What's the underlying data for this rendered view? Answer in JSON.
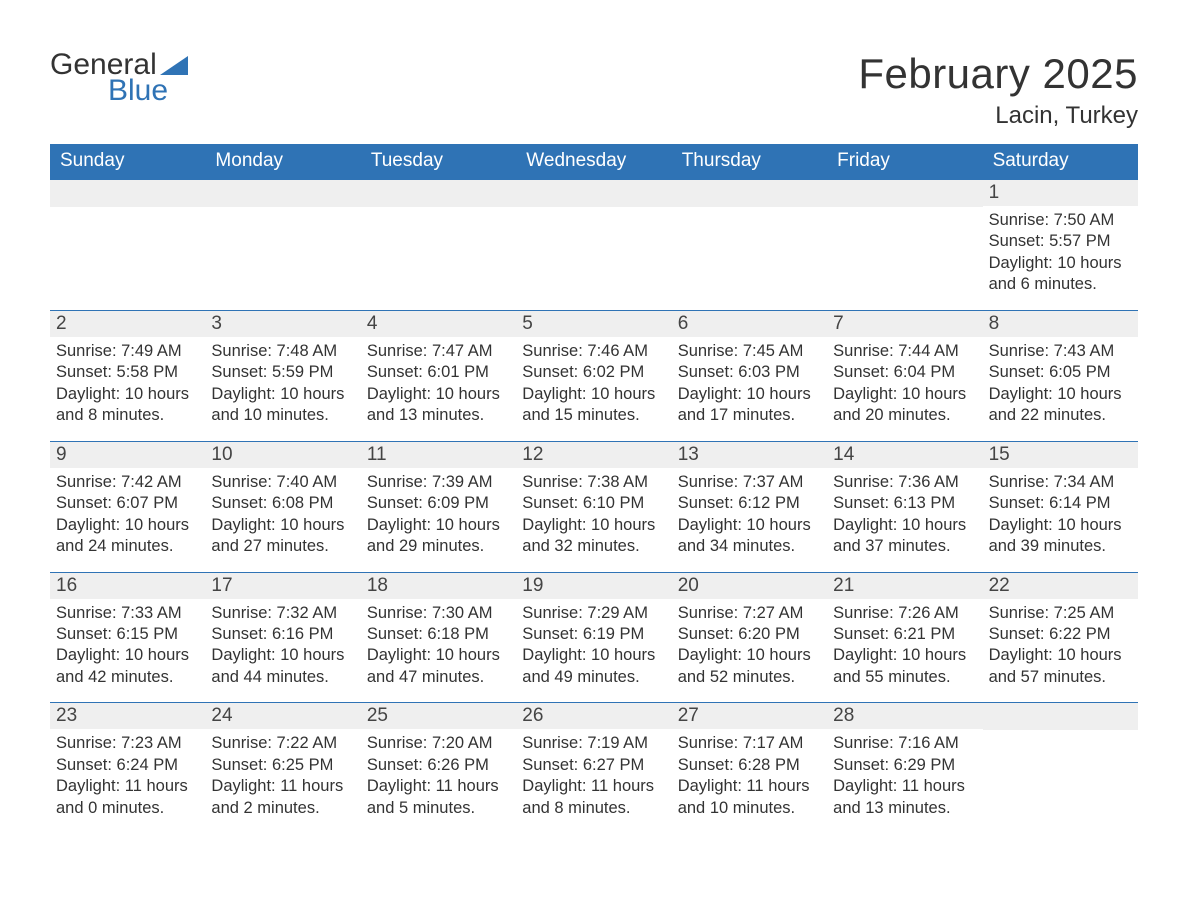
{
  "brand": {
    "name_part1": "General",
    "name_part2": "Blue"
  },
  "colors": {
    "accent": "#2f73b5",
    "header_bg": "#2f73b5",
    "header_text": "#ffffff",
    "daynum_bg": "#efefef",
    "body_text": "#333333",
    "page_bg": "#ffffff",
    "week_border": "#2f73b5"
  },
  "calendar": {
    "title": "February 2025",
    "location": "Lacin, Turkey",
    "columns": [
      "Sunday",
      "Monday",
      "Tuesday",
      "Wednesday",
      "Thursday",
      "Friday",
      "Saturday"
    ],
    "weeks": [
      [
        null,
        null,
        null,
        null,
        null,
        null,
        {
          "day": "1",
          "sunrise": "Sunrise: 7:50 AM",
          "sunset": "Sunset: 5:57 PM",
          "daylight": "Daylight: 10 hours and 6 minutes."
        }
      ],
      [
        {
          "day": "2",
          "sunrise": "Sunrise: 7:49 AM",
          "sunset": "Sunset: 5:58 PM",
          "daylight": "Daylight: 10 hours and 8 minutes."
        },
        {
          "day": "3",
          "sunrise": "Sunrise: 7:48 AM",
          "sunset": "Sunset: 5:59 PM",
          "daylight": "Daylight: 10 hours and 10 minutes."
        },
        {
          "day": "4",
          "sunrise": "Sunrise: 7:47 AM",
          "sunset": "Sunset: 6:01 PM",
          "daylight": "Daylight: 10 hours and 13 minutes."
        },
        {
          "day": "5",
          "sunrise": "Sunrise: 7:46 AM",
          "sunset": "Sunset: 6:02 PM",
          "daylight": "Daylight: 10 hours and 15 minutes."
        },
        {
          "day": "6",
          "sunrise": "Sunrise: 7:45 AM",
          "sunset": "Sunset: 6:03 PM",
          "daylight": "Daylight: 10 hours and 17 minutes."
        },
        {
          "day": "7",
          "sunrise": "Sunrise: 7:44 AM",
          "sunset": "Sunset: 6:04 PM",
          "daylight": "Daylight: 10 hours and 20 minutes."
        },
        {
          "day": "8",
          "sunrise": "Sunrise: 7:43 AM",
          "sunset": "Sunset: 6:05 PM",
          "daylight": "Daylight: 10 hours and 22 minutes."
        }
      ],
      [
        {
          "day": "9",
          "sunrise": "Sunrise: 7:42 AM",
          "sunset": "Sunset: 6:07 PM",
          "daylight": "Daylight: 10 hours and 24 minutes."
        },
        {
          "day": "10",
          "sunrise": "Sunrise: 7:40 AM",
          "sunset": "Sunset: 6:08 PM",
          "daylight": "Daylight: 10 hours and 27 minutes."
        },
        {
          "day": "11",
          "sunrise": "Sunrise: 7:39 AM",
          "sunset": "Sunset: 6:09 PM",
          "daylight": "Daylight: 10 hours and 29 minutes."
        },
        {
          "day": "12",
          "sunrise": "Sunrise: 7:38 AM",
          "sunset": "Sunset: 6:10 PM",
          "daylight": "Daylight: 10 hours and 32 minutes."
        },
        {
          "day": "13",
          "sunrise": "Sunrise: 7:37 AM",
          "sunset": "Sunset: 6:12 PM",
          "daylight": "Daylight: 10 hours and 34 minutes."
        },
        {
          "day": "14",
          "sunrise": "Sunrise: 7:36 AM",
          "sunset": "Sunset: 6:13 PM",
          "daylight": "Daylight: 10 hours and 37 minutes."
        },
        {
          "day": "15",
          "sunrise": "Sunrise: 7:34 AM",
          "sunset": "Sunset: 6:14 PM",
          "daylight": "Daylight: 10 hours and 39 minutes."
        }
      ],
      [
        {
          "day": "16",
          "sunrise": "Sunrise: 7:33 AM",
          "sunset": "Sunset: 6:15 PM",
          "daylight": "Daylight: 10 hours and 42 minutes."
        },
        {
          "day": "17",
          "sunrise": "Sunrise: 7:32 AM",
          "sunset": "Sunset: 6:16 PM",
          "daylight": "Daylight: 10 hours and 44 minutes."
        },
        {
          "day": "18",
          "sunrise": "Sunrise: 7:30 AM",
          "sunset": "Sunset: 6:18 PM",
          "daylight": "Daylight: 10 hours and 47 minutes."
        },
        {
          "day": "19",
          "sunrise": "Sunrise: 7:29 AM",
          "sunset": "Sunset: 6:19 PM",
          "daylight": "Daylight: 10 hours and 49 minutes."
        },
        {
          "day": "20",
          "sunrise": "Sunrise: 7:27 AM",
          "sunset": "Sunset: 6:20 PM",
          "daylight": "Daylight: 10 hours and 52 minutes."
        },
        {
          "day": "21",
          "sunrise": "Sunrise: 7:26 AM",
          "sunset": "Sunset: 6:21 PM",
          "daylight": "Daylight: 10 hours and 55 minutes."
        },
        {
          "day": "22",
          "sunrise": "Sunrise: 7:25 AM",
          "sunset": "Sunset: 6:22 PM",
          "daylight": "Daylight: 10 hours and 57 minutes."
        }
      ],
      [
        {
          "day": "23",
          "sunrise": "Sunrise: 7:23 AM",
          "sunset": "Sunset: 6:24 PM",
          "daylight": "Daylight: 11 hours and 0 minutes."
        },
        {
          "day": "24",
          "sunrise": "Sunrise: 7:22 AM",
          "sunset": "Sunset: 6:25 PM",
          "daylight": "Daylight: 11 hours and 2 minutes."
        },
        {
          "day": "25",
          "sunrise": "Sunrise: 7:20 AM",
          "sunset": "Sunset: 6:26 PM",
          "daylight": "Daylight: 11 hours and 5 minutes."
        },
        {
          "day": "26",
          "sunrise": "Sunrise: 7:19 AM",
          "sunset": "Sunset: 6:27 PM",
          "daylight": "Daylight: 11 hours and 8 minutes."
        },
        {
          "day": "27",
          "sunrise": "Sunrise: 7:17 AM",
          "sunset": "Sunset: 6:28 PM",
          "daylight": "Daylight: 11 hours and 10 minutes."
        },
        {
          "day": "28",
          "sunrise": "Sunrise: 7:16 AM",
          "sunset": "Sunset: 6:29 PM",
          "daylight": "Daylight: 11 hours and 13 minutes."
        },
        null
      ]
    ]
  }
}
